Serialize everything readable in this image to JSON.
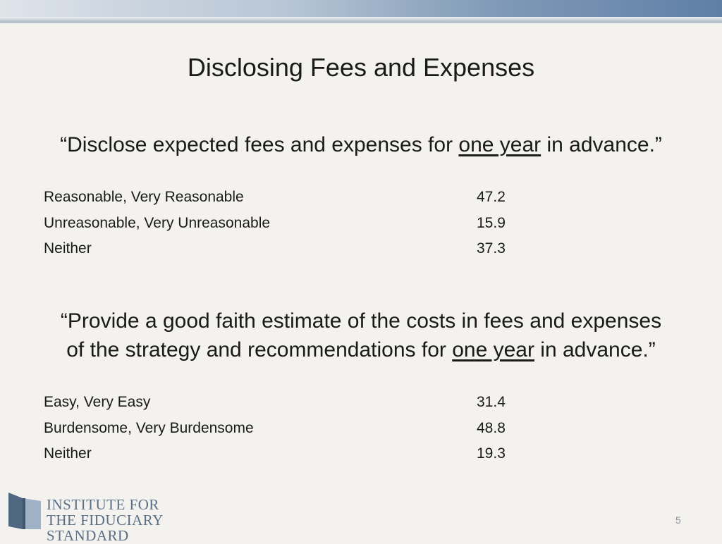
{
  "slide": {
    "title": "Disclosing Fees and Expenses",
    "page_number": "5"
  },
  "section1": {
    "quote_pre": "“Disclose expected fees and expenses for ",
    "quote_emph": "one year",
    "quote_post": " in advance.”",
    "rows": [
      {
        "label": "Reasonable, Very Reasonable",
        "value": "47.2"
      },
      {
        "label": "Unreasonable, Very Unreasonable",
        "value": "15.9"
      },
      {
        "label": "Neither",
        "value": "37.3"
      }
    ]
  },
  "section2": {
    "quote_line1": "“Provide a good faith estimate of the costs in fees and expenses",
    "quote_line2_pre": "of the strategy and recommendations for ",
    "quote_emph": "one year",
    "quote_post": " in advance.”",
    "rows": [
      {
        "label": "Easy, Very Easy",
        "value": "31.4"
      },
      {
        "label": "Burdensome, Very Burdensome",
        "value": "48.8"
      },
      {
        "label": "Neither",
        "value": "19.3"
      }
    ]
  },
  "logo": {
    "line1": "INSTITUTE FOR",
    "line2": "THE FIDUCIARY STANDARD",
    "colors": {
      "dark": "#4f6781",
      "light": "#9fb1c4",
      "text": "#5a6f86"
    }
  }
}
